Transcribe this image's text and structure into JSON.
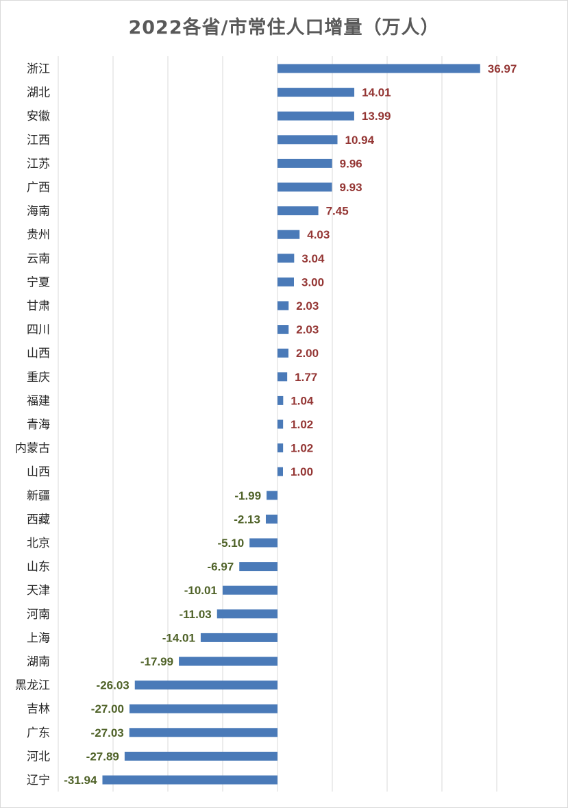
{
  "chart_data": {
    "type": "bar",
    "orientation": "horizontal",
    "title": "2022各省/市常住人口增量（万人）",
    "xlim": [
      -50,
      50
    ],
    "grid": true,
    "colors": {
      "bar": "#4a7ab8",
      "positive_label": "#943634",
      "negative_label": "#4f6228",
      "grid": "#d9d9d9",
      "category": "#262626"
    },
    "categories": [
      "浙江",
      "湖北",
      "安徽",
      "江西",
      "江苏",
      "广西",
      "海南",
      "贵州",
      "云南",
      "宁夏",
      "甘肃",
      "四川",
      "山西",
      "重庆",
      "福建",
      "青海",
      "内蒙古",
      "山西",
      "新疆",
      "西藏",
      "北京",
      "山东",
      "天津",
      "河南",
      "上海",
      "湖南",
      "黑龙江",
      "吉林",
      "广东",
      "河北",
      "辽宁"
    ],
    "values": [
      36.97,
      14.01,
      13.99,
      10.94,
      9.96,
      9.93,
      7.45,
      4.03,
      3.04,
      3.0,
      2.03,
      2.03,
      2.0,
      1.77,
      1.04,
      1.02,
      1.02,
      1.0,
      -1.99,
      -2.13,
      -5.1,
      -6.97,
      -10.01,
      -11.03,
      -14.01,
      -17.99,
      -26.03,
      -27.0,
      -27.03,
      -27.89,
      -31.94
    ],
    "labels": [
      "36.97",
      "14.01",
      "13.99",
      "10.94",
      "9.96",
      "9.93",
      "7.45",
      "4.03",
      "3.04",
      "3.00",
      "2.03",
      "2.03",
      "2.00",
      "1.77",
      "1.04",
      "1.02",
      "1.02",
      "1.00",
      "-1.99",
      "-2.13",
      "-5.10",
      "-6.97",
      "-10.01",
      "-11.03",
      "-14.01",
      "-17.99",
      "-26.03",
      "-27.00",
      "-27.03",
      "-27.89",
      "-31.94"
    ]
  }
}
